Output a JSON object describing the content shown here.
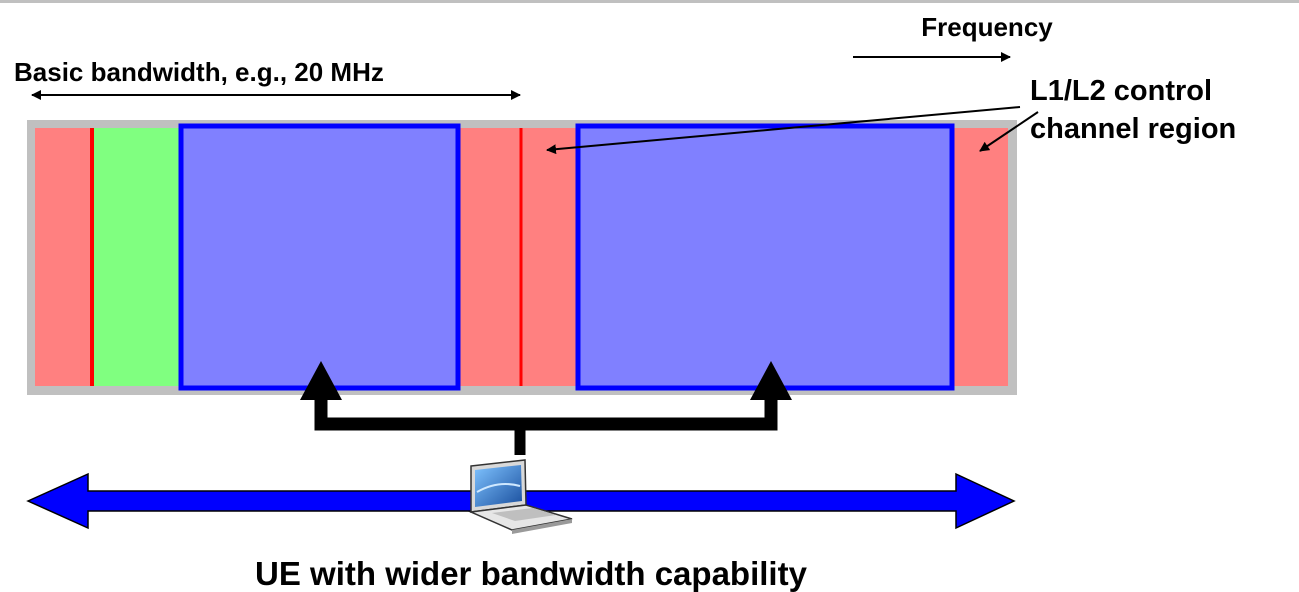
{
  "labels": {
    "frequency": "Frequency",
    "basic_bandwidth": "Basic bandwidth, e.g., 20 MHz",
    "control_region_line1": "L1/L2 control",
    "control_region_line2": "channel region",
    "ue_caption": "UE with wider bandwidth capability"
  },
  "icons": {
    "ue_device": "laptop-icon"
  },
  "colors": {
    "control_region": "#ff8080",
    "green_region": "#80ff80",
    "scheduled_block_fill": "#8080ff",
    "scheduled_block_border": "#0000ff",
    "band_background": "#c0c0c0",
    "control_boundary_line": "#ff0000",
    "ue_bandwidth_arrow": "#0000ff",
    "connector": "#000000"
  }
}
